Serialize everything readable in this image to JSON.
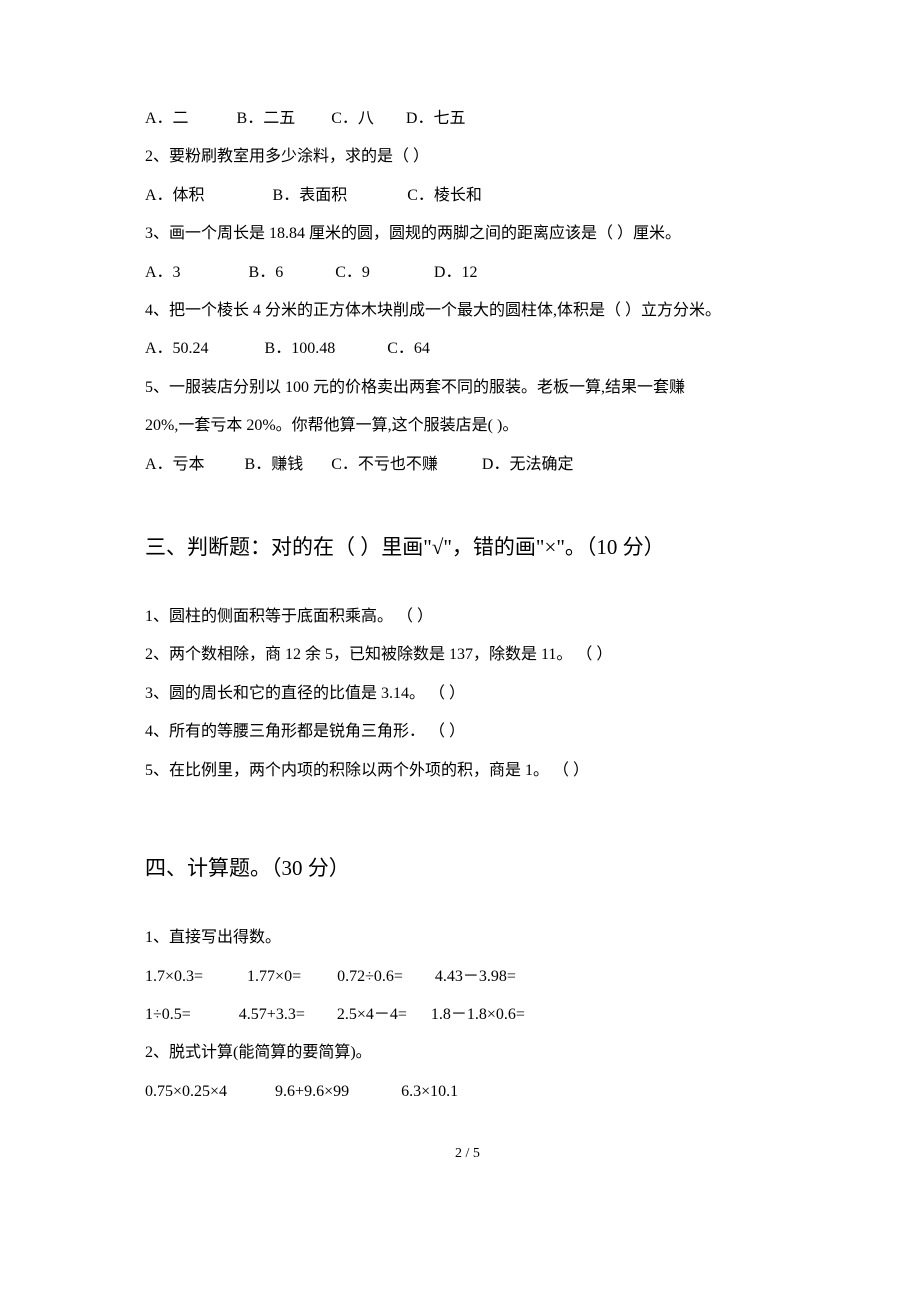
{
  "q1_options": "A．二            B．二五         C．八        D．七五",
  "q2_text": "2、要粉刷教室用多少涂料，求的是（     ）",
  "q2_options": "A．体积                 B．表面积               C．棱长和",
  "q3_text": "3、画一个周长是 18.84 厘米的圆，圆规的两脚之间的距离应该是（    ）厘米。",
  "q3_options": "A．3                 B．6             C．9                D．12",
  "q4_text": "4、把一个棱长 4 分米的正方体木块削成一个最大的圆柱体,体积是（    ）立方分米。",
  "q4_options": "A．50.24              B．100.48             C．64",
  "q5_text_a": "5、一服装店分别以 100 元的价格卖出两套不同的服装。老板一算,结果一套赚",
  "q5_text_b": "20%,一套亏本 20%。你帮他算一算,这个服装店是(     )。",
  "q5_options": "A．亏本          B．赚钱       C．不亏也不赚           D．无法确定",
  "section3_title": "三、判断题：对的在（  ）里画\"√\"，错的画\"×\"。（10 分）",
  "j1": "1、圆柱的侧面积等于底面积乘高。   （     ）",
  "j2": "2、两个数相除，商 12 余 5，已知被除数是 137，除数是 11。    （     ）",
  "j3": "3、圆的周长和它的直径的比值是 3.14。   （     ）",
  "j4": "4、所有的等腰三角形都是锐角三角形．    （     ）",
  "j5": "5、在比例里，两个内项的积除以两个外项的积，商是 1。    （     ）",
  "section4_title": "四、计算题。（30 分）",
  "calc1_label": "1、直接写出得数。",
  "calc1_row1": "1.7×0.3=           1.77×0=         0.72÷0.6=        4.43－3.98=",
  "calc1_row2": "1÷0.5=            4.57+3.3=        2.5×4－4=      1.8－1.8×0.6=",
  "calc2_label": "2、脱式计算(能简算的要简算)。",
  "calc2_row1": "0.75×0.25×4            9.6+9.6×99             6.3×10.1",
  "page_num": "2 / 5"
}
